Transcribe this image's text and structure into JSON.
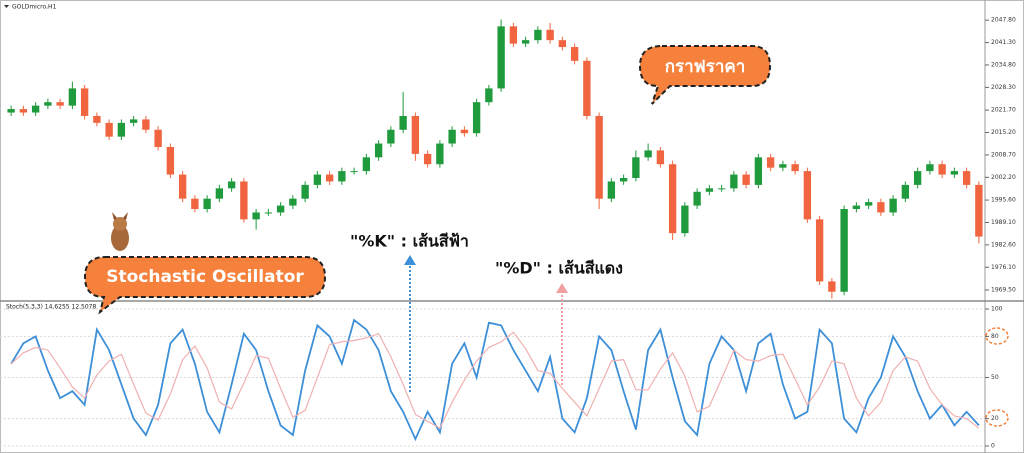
{
  "chart_data": [
    {
      "type": "candlestick",
      "title": "GOLDmicro,H1",
      "up_color": "#1f9a3c",
      "down_color": "#f0643f",
      "grid": false,
      "ylim": [
        1966.6,
        2052.2
      ],
      "yticks": [
        {
          "value": 2047.8,
          "label": "2047.80"
        },
        {
          "value": 2041.3,
          "label": "2041.30"
        },
        {
          "value": 2034.8,
          "label": "2034.80"
        },
        {
          "value": 2028.3,
          "label": "2028.30"
        },
        {
          "value": 2021.7,
          "label": "2021.70"
        },
        {
          "value": 2015.2,
          "label": "2015.20"
        },
        {
          "value": 2008.7,
          "label": "2008.70"
        },
        {
          "value": 2002.2,
          "label": "2002.20"
        },
        {
          "value": 1995.6,
          "label": "1995.60"
        },
        {
          "value": 1989.1,
          "label": "1989.10"
        },
        {
          "value": 1982.6,
          "label": "1982.60"
        },
        {
          "value": 1976.1,
          "label": "1976.10"
        },
        {
          "value": 1969.5,
          "label": "1969.50"
        }
      ],
      "open": [
        2021,
        2022,
        2021,
        2023,
        2024,
        2023,
        2028,
        2020,
        2018,
        2014,
        2018,
        2019,
        2016,
        2011,
        2003,
        1996,
        1993,
        1996,
        1999,
        2001,
        1990,
        1992,
        1992,
        1994,
        1996,
        2000,
        2003,
        2001,
        2004,
        2004,
        2008,
        2012,
        2016,
        2020,
        2009,
        2006,
        2012,
        2016,
        2015,
        2024,
        2028,
        2046,
        2041,
        2042,
        2045,
        2042,
        2040,
        2036,
        2020,
        1996,
        2001,
        2002,
        2008,
        2010,
        2006,
        1986,
        1994,
        1998,
        1999,
        1999,
        2003,
        2000,
        2008,
        2005,
        2006,
        2004,
        1990,
        1972,
        1969,
        1993,
        1994,
        1995,
        1992,
        1996,
        2000,
        2004,
        2006,
        2003,
        2004,
        2000
      ],
      "close": [
        2022,
        2021,
        2023,
        2024,
        2023,
        2028,
        2020,
        2018,
        2014,
        2018,
        2019,
        2016,
        2011,
        2003,
        1996,
        1993,
        1996,
        1999,
        2001,
        1990,
        1992,
        1992,
        1994,
        1996,
        2000,
        2003,
        2001,
        2004,
        2004,
        2008,
        2012,
        2016,
        2020,
        2009,
        2006,
        2012,
        2016,
        2015,
        2024,
        2028,
        2046,
        2041,
        2042,
        2045,
        2042,
        2040,
        2036,
        2020,
        1996,
        2001,
        2002,
        2008,
        2010,
        2006,
        1986,
        1994,
        1998,
        1999,
        1999,
        2003,
        2000,
        2008,
        2005,
        2006,
        2004,
        1990,
        1972,
        1969,
        1993,
        1994,
        1995,
        1992,
        1996,
        2000,
        2004,
        2006,
        2003,
        2004,
        2000,
        1985
      ],
      "high": [
        2023,
        2023,
        2024,
        2025,
        2025,
        2030,
        2029,
        2021,
        2019,
        2019,
        2020,
        2020,
        2017,
        2012,
        2004,
        1997,
        1997,
        2000,
        2002,
        2002,
        1993,
        1993,
        1995,
        1997,
        2001,
        2004,
        2004,
        2005,
        2005,
        2009,
        2013,
        2017,
        2027,
        2021,
        2010,
        2013,
        2017,
        2017,
        2025,
        2029,
        2048,
        2047,
        2043,
        2046,
        2047,
        2043,
        2041,
        2037,
        2021,
        2002,
        2003,
        2010,
        2012,
        2011,
        2007,
        1995,
        1999,
        2000,
        2000,
        2004,
        2004,
        2009,
        2009,
        2007,
        2007,
        2005,
        1991,
        1973,
        1994,
        1995,
        1996,
        1996,
        1997,
        2001,
        2005,
        2007,
        2007,
        2005,
        2005,
        2001
      ],
      "low": [
        2020,
        2020,
        2020,
        2022,
        2022,
        2022,
        2019,
        2017,
        2013,
        2013,
        2017,
        2015,
        2010,
        2002,
        1995,
        1992,
        1992,
        1995,
        1998,
        1989,
        1987,
        1991,
        1991,
        1993,
        1995,
        1999,
        2000,
        2000,
        2003,
        2003,
        2007,
        2011,
        2015,
        2007,
        2005,
        2005,
        2011,
        2014,
        2014,
        2023,
        2027,
        2040,
        2040,
        2041,
        2041,
        2039,
        2035,
        2019,
        1993,
        1995,
        2000,
        2001,
        2007,
        2005,
        1984,
        1985,
        1993,
        1997,
        1998,
        1998,
        1999,
        1999,
        2004,
        2004,
        2003,
        1989,
        1971,
        1967,
        1968,
        1992,
        1993,
        1991,
        1991,
        1995,
        1999,
        2003,
        2002,
        2002,
        1999,
        1983
      ]
    },
    {
      "type": "line",
      "title": "Stoch(5,3,3) 14.6255 12.5078",
      "grid": true,
      "ylim": [
        0,
        100
      ],
      "yticks": [
        100,
        80,
        50,
        20,
        0
      ],
      "series": [
        {
          "name": "%K",
          "color": "#3d8fd8",
          "values": [
            60,
            75,
            80,
            55,
            35,
            40,
            30,
            85,
            70,
            45,
            20,
            8,
            30,
            75,
            85,
            60,
            25,
            10,
            45,
            82,
            70,
            40,
            15,
            8,
            55,
            88,
            80,
            60,
            92,
            85,
            70,
            40,
            25,
            5,
            25,
            10,
            60,
            75,
            50,
            90,
            88,
            70,
            55,
            40,
            65,
            20,
            10,
            35,
            80,
            70,
            40,
            12,
            70,
            85,
            50,
            18,
            8,
            60,
            80,
            70,
            40,
            75,
            82,
            45,
            20,
            25,
            85,
            75,
            20,
            10,
            35,
            50,
            80,
            65,
            40,
            20,
            30,
            15,
            25,
            15
          ]
        },
        {
          "name": "%D",
          "color": "#f0b0b0",
          "values": [
            60,
            68,
            72,
            70,
            57,
            43,
            35,
            52,
            62,
            67,
            45,
            24,
            19,
            38,
            63,
            73,
            57,
            32,
            27,
            46,
            66,
            64,
            42,
            21,
            26,
            50,
            74,
            76,
            77,
            79,
            82,
            65,
            45,
            23,
            18,
            13,
            32,
            48,
            62,
            72,
            76,
            83,
            71,
            55,
            53,
            42,
            32,
            22,
            42,
            62,
            63,
            41,
            41,
            56,
            68,
            51,
            25,
            29,
            49,
            70,
            63,
            62,
            66,
            67,
            49,
            30,
            43,
            62,
            60,
            35,
            22,
            32,
            55,
            65,
            62,
            42,
            30,
            22,
            20,
            13
          ]
        }
      ]
    }
  ],
  "annotations": {
    "price_label": "กราฟราคา",
    "k_label": "\"%K\" : เส้นสีฟ้า",
    "d_label": "\"%D\" : เส้นสีแดง",
    "stoch_label": "Stochastic Oscillator"
  }
}
